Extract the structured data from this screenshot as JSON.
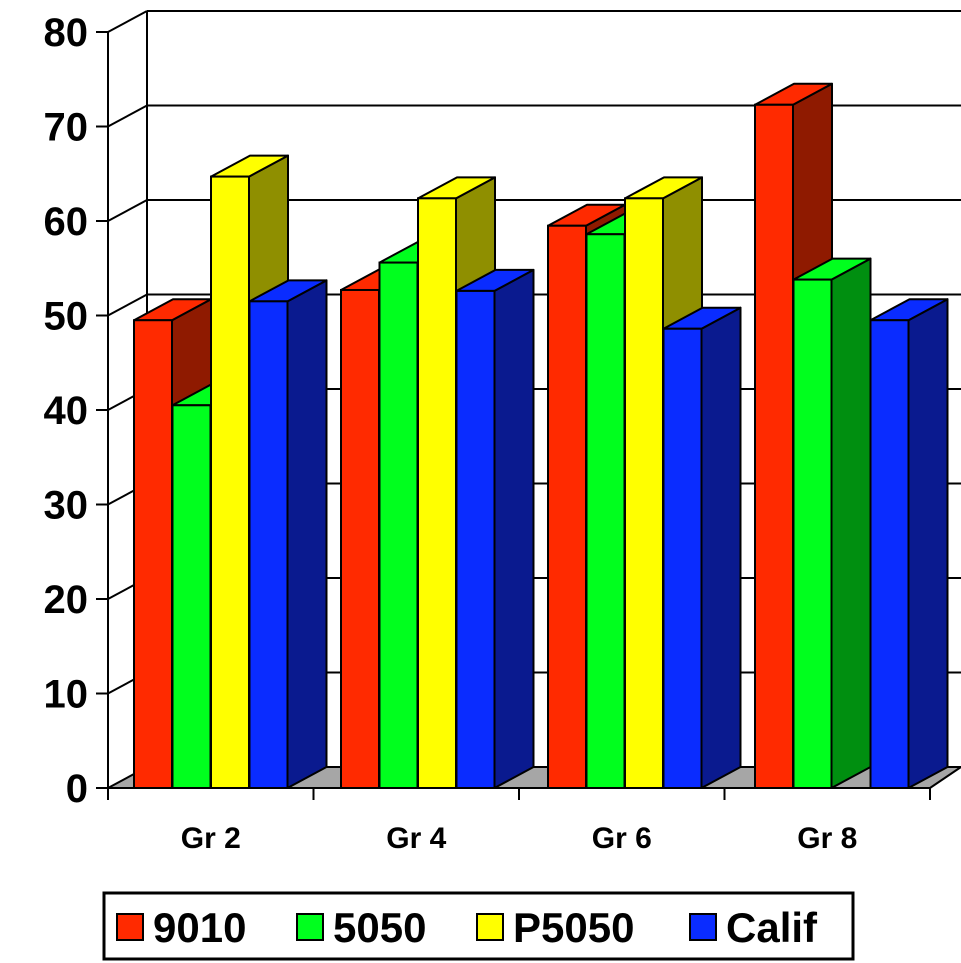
{
  "chart_data": {
    "type": "bar",
    "title": "",
    "xlabel": "",
    "ylabel": "",
    "categories": [
      "Gr 2",
      "Gr 4",
      "Gr 6",
      "Gr 8"
    ],
    "series": [
      {
        "name": "9010",
        "values": [
          49.5,
          52.7,
          59.5,
          72.3
        ],
        "color": "#ff2a00",
        "side_color": "#8f1a00"
      },
      {
        "name": "5050",
        "values": [
          40.5,
          55.6,
          58.6,
          53.8
        ],
        "color": "#00ff1e",
        "side_color": "#008f10"
      },
      {
        "name": "P5050",
        "values": [
          64.7,
          62.4,
          62.4,
          null
        ],
        "color": "#ffff00",
        "side_color": "#8f8f00"
      },
      {
        "name": "Calif",
        "values": [
          51.5,
          52.6,
          48.6,
          49.5
        ],
        "color": "#0a2cff",
        "side_color": "#0a1a8f"
      }
    ],
    "yticks": [
      "0",
      "10",
      "20",
      "30",
      "40",
      "50",
      "60",
      "70",
      "80"
    ],
    "ylim": [
      0,
      80
    ],
    "grid": true,
    "legend_position": "bottom",
    "style": "3d-clustered-column"
  }
}
